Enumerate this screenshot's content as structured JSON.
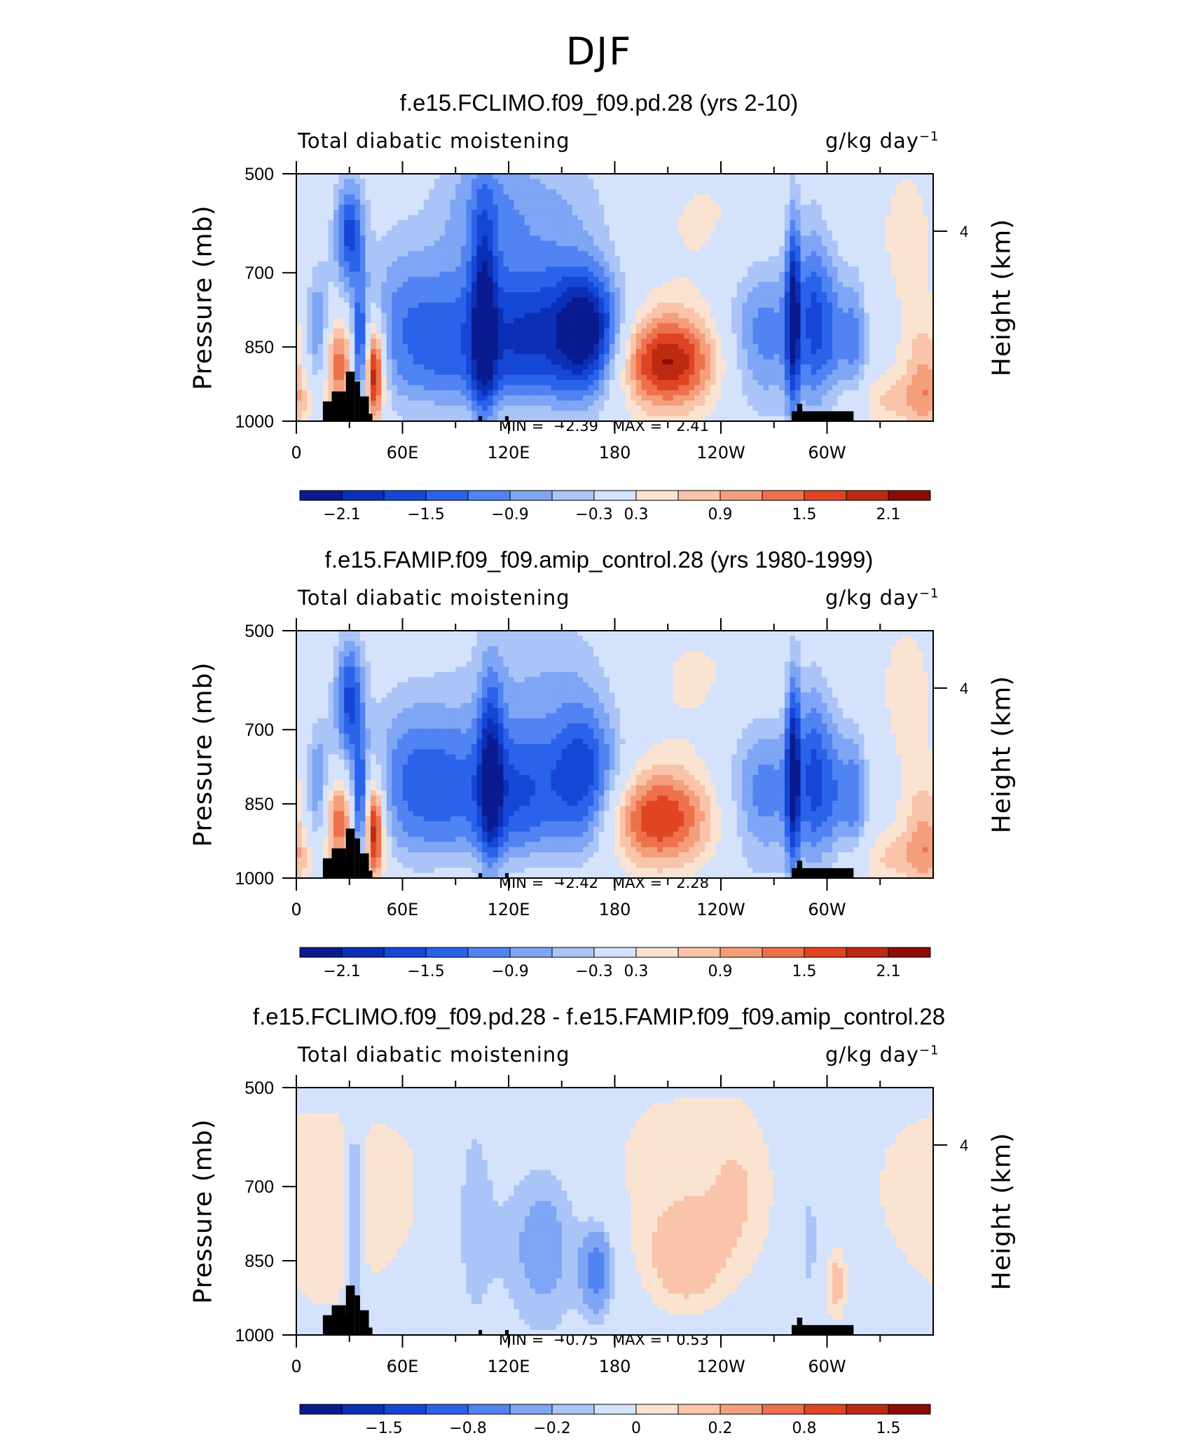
{
  "page_title": "DJF",
  "colors": {
    "scale": [
      "#0a1a8f",
      "#0b2fb5",
      "#1646d6",
      "#2b62ea",
      "#5183f2",
      "#7fa5f5",
      "#aac4f7",
      "#d4e2fb",
      "#fbe3d2",
      "#f9c4a9",
      "#f59e7b",
      "#ee714d",
      "#df4523",
      "#bd2a12",
      "#8b0d05"
    ],
    "land": "#000000"
  },
  "chart_data": [
    {
      "type": "heatmap",
      "title": "f.e15.FCLIMO.f09_f09.pd.28 (yrs 2-10)",
      "variable": "Total diabatic moistening",
      "units": "g/kg day",
      "units_exponent": "−1",
      "ylabel": "Pressure (mb)",
      "ylabel_right": "Height (km)",
      "y_ticks": [
        "500",
        "700",
        "850",
        "1000"
      ],
      "y_tick_values": [
        500,
        700,
        850,
        1000
      ],
      "right_ticks": [
        "4"
      ],
      "x_ticks": [
        "0",
        "60E",
        "120E",
        "180",
        "120W",
        "60W"
      ],
      "x_tick_values": [
        0,
        60,
        120,
        180,
        240,
        300
      ],
      "xlim": [
        0,
        360
      ],
      "ylim": [
        1000,
        500
      ],
      "min_label": "MIN =",
      "min_value": "−2.39",
      "max_label": "MAX =",
      "max_value": "2.41",
      "colorbar_labels": [
        "−2.1",
        "−1.5",
        "−0.9",
        "−0.3",
        "0.3",
        "0.9",
        "1.5",
        "2.1"
      ],
      "features": [
        {
          "lon": 30,
          "p": 620,
          "v": -1.6,
          "sl": 6,
          "sp": 80
        },
        {
          "lon": 12,
          "p": 820,
          "v": -1.0,
          "sl": 5,
          "sp": 110
        },
        {
          "lon": 24,
          "p": 880,
          "v": 1.4,
          "sl": 6,
          "sp": 60
        },
        {
          "lon": 36,
          "p": 860,
          "v": -1.6,
          "sl": 3,
          "sp": 90
        },
        {
          "lon": 44,
          "p": 900,
          "v": 2.3,
          "sl": 4,
          "sp": 70
        },
        {
          "lon": 58,
          "p": 800,
          "v": -0.7,
          "sl": 15,
          "sp": 130
        },
        {
          "lon": 90,
          "p": 840,
          "v": -1.3,
          "sl": 22,
          "sp": 120
        },
        {
          "lon": 106,
          "p": 800,
          "v": -1.5,
          "sl": 5,
          "sp": 160
        },
        {
          "lon": 125,
          "p": 830,
          "v": -1.2,
          "sl": 14,
          "sp": 110
        },
        {
          "lon": 150,
          "p": 820,
          "v": -1.2,
          "sl": 15,
          "sp": 120
        },
        {
          "lon": 167,
          "p": 820,
          "v": -1.9,
          "sl": 13,
          "sp": 90
        },
        {
          "lon": 140,
          "p": 560,
          "v": -0.5,
          "sl": 30,
          "sp": 90
        },
        {
          "lon": 105,
          "p": 560,
          "v": -0.6,
          "sl": 18,
          "sp": 100
        },
        {
          "lon": 210,
          "p": 880,
          "v": 2.1,
          "sl": 20,
          "sp": 70
        },
        {
          "lon": 230,
          "p": 600,
          "v": 0.35,
          "sl": 30,
          "sp": 120
        },
        {
          "lon": 265,
          "p": 820,
          "v": -1.1,
          "sl": 16,
          "sp": 110
        },
        {
          "lon": 281,
          "p": 780,
          "v": -1.9,
          "sl": 3,
          "sp": 150
        },
        {
          "lon": 292,
          "p": 790,
          "v": -1.3,
          "sl": 5,
          "sp": 140
        },
        {
          "lon": 302,
          "p": 820,
          "v": -1.0,
          "sl": 5,
          "sp": 120
        },
        {
          "lon": 315,
          "p": 830,
          "v": -1.1,
          "sl": 6,
          "sp": 100
        },
        {
          "lon": 345,
          "p": 620,
          "v": 0.35,
          "sl": 20,
          "sp": 200
        },
        {
          "lon": 355,
          "p": 900,
          "v": 0.7,
          "sl": 8,
          "sp": 80
        },
        {
          "lon": 345,
          "p": 960,
          "v": 0.6,
          "sl": 30,
          "sp": 40
        },
        {
          "lon": 110,
          "p": 980,
          "v": 0.3,
          "sl": 40,
          "sp": 30
        }
      ]
    },
    {
      "type": "heatmap",
      "title": "f.e15.FAMIP.f09_f09.amip_control.28 (yrs 1980-1999)",
      "variable": "Total diabatic moistening",
      "units": "g/kg day",
      "units_exponent": "−1",
      "ylabel": "Pressure (mb)",
      "ylabel_right": "Height (km)",
      "y_ticks": [
        "500",
        "700",
        "850",
        "1000"
      ],
      "y_tick_values": [
        500,
        700,
        850,
        1000
      ],
      "right_ticks": [
        "4"
      ],
      "x_ticks": [
        "0",
        "60E",
        "120E",
        "180",
        "120W",
        "60W"
      ],
      "x_tick_values": [
        0,
        60,
        120,
        180,
        240,
        300
      ],
      "xlim": [
        0,
        360
      ],
      "ylim": [
        1000,
        500
      ],
      "min_label": "MIN =",
      "min_value": "−2.42",
      "max_label": "MAX =",
      "max_value": "2.28",
      "colorbar_labels": [
        "−2.1",
        "−1.5",
        "−0.9",
        "−0.3",
        "0.3",
        "0.9",
        "1.5",
        "2.1"
      ],
      "features": [
        {
          "lon": 30,
          "p": 640,
          "v": -1.6,
          "sl": 6,
          "sp": 90
        },
        {
          "lon": 12,
          "p": 820,
          "v": -1.0,
          "sl": 5,
          "sp": 110
        },
        {
          "lon": 24,
          "p": 880,
          "v": 1.4,
          "sl": 6,
          "sp": 60
        },
        {
          "lon": 36,
          "p": 860,
          "v": -1.6,
          "sl": 3,
          "sp": 90
        },
        {
          "lon": 44,
          "p": 900,
          "v": 2.2,
          "sl": 4,
          "sp": 70
        },
        {
          "lon": 62,
          "p": 800,
          "v": -0.8,
          "sl": 15,
          "sp": 120
        },
        {
          "lon": 92,
          "p": 820,
          "v": -1.2,
          "sl": 22,
          "sp": 120
        },
        {
          "lon": 110,
          "p": 790,
          "v": -1.4,
          "sl": 5,
          "sp": 150
        },
        {
          "lon": 128,
          "p": 830,
          "v": -1.1,
          "sl": 14,
          "sp": 110
        },
        {
          "lon": 162,
          "p": 800,
          "v": -1.8,
          "sl": 15,
          "sp": 110
        },
        {
          "lon": 140,
          "p": 570,
          "v": -0.45,
          "sl": 30,
          "sp": 100
        },
        {
          "lon": 205,
          "p": 880,
          "v": 1.8,
          "sl": 22,
          "sp": 70
        },
        {
          "lon": 225,
          "p": 600,
          "v": 0.35,
          "sl": 35,
          "sp": 120
        },
        {
          "lon": 265,
          "p": 820,
          "v": -1.1,
          "sl": 16,
          "sp": 110
        },
        {
          "lon": 281,
          "p": 780,
          "v": -1.9,
          "sl": 3,
          "sp": 150
        },
        {
          "lon": 292,
          "p": 790,
          "v": -1.3,
          "sl": 5,
          "sp": 140
        },
        {
          "lon": 302,
          "p": 820,
          "v": -1.0,
          "sl": 5,
          "sp": 120
        },
        {
          "lon": 315,
          "p": 830,
          "v": -1.2,
          "sl": 6,
          "sp": 100
        },
        {
          "lon": 345,
          "p": 620,
          "v": 0.35,
          "sl": 20,
          "sp": 200
        },
        {
          "lon": 355,
          "p": 900,
          "v": 0.7,
          "sl": 8,
          "sp": 80
        },
        {
          "lon": 345,
          "p": 960,
          "v": 0.6,
          "sl": 30,
          "sp": 40
        },
        {
          "lon": 110,
          "p": 980,
          "v": 0.3,
          "sl": 40,
          "sp": 30
        }
      ]
    },
    {
      "type": "heatmap",
      "title": "f.e15.FCLIMO.f09_f09.pd.28 - f.e15.FAMIP.f09_f09.amip_control.28",
      "variable": "Total diabatic moistening",
      "units": "g/kg day",
      "units_exponent": "−1",
      "ylabel": "Pressure (mb)",
      "ylabel_right": "Height (km)",
      "y_ticks": [
        "500",
        "700",
        "850",
        "1000"
      ],
      "y_tick_values": [
        500,
        700,
        850,
        1000
      ],
      "right_ticks": [
        "4"
      ],
      "x_ticks": [
        "0",
        "60E",
        "120E",
        "180",
        "120W",
        "60W"
      ],
      "x_tick_values": [
        0,
        60,
        120,
        180,
        240,
        300
      ],
      "xlim": [
        0,
        360
      ],
      "ylim": [
        1000,
        500
      ],
      "min_label": "MIN =",
      "min_value": "−0.75",
      "max_label": "MAX =",
      "max_value": "0.53",
      "colorbar_labels": [
        "−1.5",
        "−0.8",
        "−0.2",
        "0",
        "0.2",
        "0.8",
        "1.5"
      ],
      "features": [
        {
          "lon": 20,
          "p": 760,
          "v": 0.12,
          "sl": 20,
          "sp": 200
        },
        {
          "lon": 33,
          "p": 760,
          "v": -0.35,
          "sl": 3,
          "sp": 180
        },
        {
          "lon": 60,
          "p": 700,
          "v": 0.1,
          "sl": 20,
          "sp": 200
        },
        {
          "lon": 100,
          "p": 760,
          "v": -0.15,
          "sl": 10,
          "sp": 200
        },
        {
          "lon": 140,
          "p": 820,
          "v": -0.3,
          "sl": 15,
          "sp": 120
        },
        {
          "lon": 170,
          "p": 870,
          "v": -0.55,
          "sl": 6,
          "sp": 60
        },
        {
          "lon": 220,
          "p": 840,
          "v": 0.3,
          "sl": 14,
          "sp": 70
        },
        {
          "lon": 210,
          "p": 650,
          "v": 0.12,
          "sl": 40,
          "sp": 200
        },
        {
          "lon": 250,
          "p": 720,
          "v": 0.15,
          "sl": 14,
          "sp": 120
        },
        {
          "lon": 290,
          "p": 800,
          "v": -0.15,
          "sl": 6,
          "sp": 120
        },
        {
          "lon": 305,
          "p": 900,
          "v": 0.25,
          "sl": 4,
          "sp": 50
        },
        {
          "lon": 340,
          "p": 700,
          "v": 0.1,
          "sl": 25,
          "sp": 200
        }
      ]
    }
  ]
}
